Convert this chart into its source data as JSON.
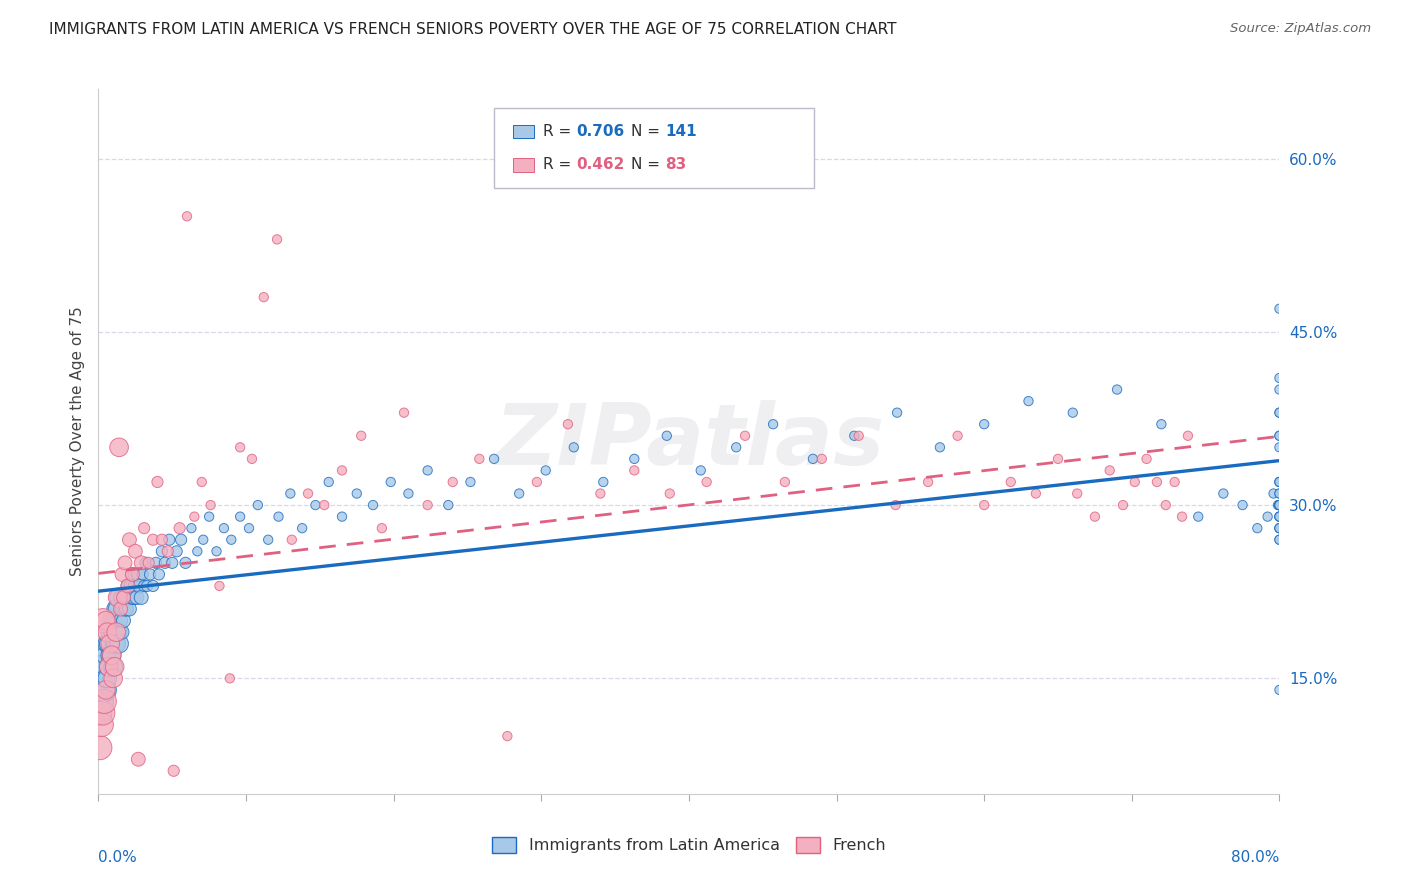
{
  "title": "IMMIGRANTS FROM LATIN AMERICA VS FRENCH SENIORS POVERTY OVER THE AGE OF 75 CORRELATION CHART",
  "source": "Source: ZipAtlas.com",
  "ylabel": "Seniors Poverty Over the Age of 75",
  "ytick_values": [
    0.15,
    0.3,
    0.45,
    0.6
  ],
  "xmin": 0.0,
  "xmax": 0.8,
  "ymin": 0.05,
  "ymax": 0.66,
  "legend_label1": "Immigrants from Latin America",
  "legend_label2": "French",
  "scatter1_color": "#a8c8e8",
  "scatter2_color": "#f4b0c0",
  "line1_color": "#1a6bbf",
  "line2_color": "#e06080",
  "background_color": "#ffffff",
  "grid_color": "#d8d8e8",
  "R1": 0.706,
  "N1": 141,
  "R2": 0.462,
  "N2": 83,
  "scatter1_x": [
    0.001,
    0.002,
    0.002,
    0.003,
    0.003,
    0.004,
    0.004,
    0.005,
    0.005,
    0.006,
    0.006,
    0.007,
    0.007,
    0.008,
    0.008,
    0.009,
    0.009,
    0.01,
    0.01,
    0.011,
    0.011,
    0.012,
    0.012,
    0.013,
    0.013,
    0.014,
    0.014,
    0.015,
    0.015,
    0.016,
    0.016,
    0.017,
    0.018,
    0.018,
    0.019,
    0.02,
    0.02,
    0.021,
    0.022,
    0.023,
    0.023,
    0.024,
    0.025,
    0.026,
    0.027,
    0.028,
    0.029,
    0.03,
    0.031,
    0.032,
    0.033,
    0.035,
    0.037,
    0.039,
    0.041,
    0.043,
    0.045,
    0.048,
    0.05,
    0.053,
    0.056,
    0.059,
    0.063,
    0.067,
    0.071,
    0.075,
    0.08,
    0.085,
    0.09,
    0.096,
    0.102,
    0.108,
    0.115,
    0.122,
    0.13,
    0.138,
    0.147,
    0.156,
    0.165,
    0.175,
    0.186,
    0.198,
    0.21,
    0.223,
    0.237,
    0.252,
    0.268,
    0.285,
    0.303,
    0.322,
    0.342,
    0.363,
    0.385,
    0.408,
    0.432,
    0.457,
    0.484,
    0.512,
    0.541,
    0.57,
    0.6,
    0.63,
    0.66,
    0.69,
    0.72,
    0.745,
    0.762,
    0.775,
    0.785,
    0.792,
    0.796,
    0.799,
    0.8,
    0.8,
    0.8,
    0.8,
    0.8,
    0.8,
    0.8,
    0.8,
    0.8,
    0.8,
    0.8,
    0.8,
    0.8,
    0.8,
    0.8,
    0.8,
    0.8,
    0.8,
    0.8,
    0.8,
    0.8,
    0.8,
    0.8,
    0.8,
    0.8,
    0.8,
    0.8,
    0.8,
    0.8
  ],
  "scatter1_y": [
    0.12,
    0.13,
    0.15,
    0.14,
    0.16,
    0.14,
    0.16,
    0.15,
    0.17,
    0.15,
    0.18,
    0.16,
    0.18,
    0.17,
    0.19,
    0.17,
    0.2,
    0.16,
    0.19,
    0.18,
    0.2,
    0.18,
    0.21,
    0.19,
    0.21,
    0.18,
    0.22,
    0.2,
    0.22,
    0.19,
    0.21,
    0.2,
    0.21,
    0.22,
    0.21,
    0.22,
    0.23,
    0.21,
    0.23,
    0.22,
    0.24,
    0.22,
    0.23,
    0.22,
    0.24,
    0.23,
    0.22,
    0.24,
    0.23,
    0.25,
    0.23,
    0.24,
    0.23,
    0.25,
    0.24,
    0.26,
    0.25,
    0.27,
    0.25,
    0.26,
    0.27,
    0.25,
    0.28,
    0.26,
    0.27,
    0.29,
    0.26,
    0.28,
    0.27,
    0.29,
    0.28,
    0.3,
    0.27,
    0.29,
    0.31,
    0.28,
    0.3,
    0.32,
    0.29,
    0.31,
    0.3,
    0.32,
    0.31,
    0.33,
    0.3,
    0.32,
    0.34,
    0.31,
    0.33,
    0.35,
    0.32,
    0.34,
    0.36,
    0.33,
    0.35,
    0.37,
    0.34,
    0.36,
    0.38,
    0.35,
    0.37,
    0.39,
    0.38,
    0.4,
    0.37,
    0.29,
    0.31,
    0.3,
    0.28,
    0.29,
    0.31,
    0.3,
    0.29,
    0.31,
    0.3,
    0.32,
    0.36,
    0.29,
    0.31,
    0.38,
    0.27,
    0.4,
    0.3,
    0.28,
    0.29,
    0.32,
    0.35,
    0.28,
    0.3,
    0.47,
    0.41,
    0.14,
    0.36,
    0.3,
    0.29,
    0.27,
    0.38,
    0.28,
    0.3,
    0.32,
    0.3
  ],
  "scatter2_x": [
    0.001,
    0.002,
    0.003,
    0.003,
    0.004,
    0.005,
    0.005,
    0.006,
    0.007,
    0.008,
    0.009,
    0.01,
    0.011,
    0.012,
    0.013,
    0.014,
    0.015,
    0.016,
    0.017,
    0.018,
    0.02,
    0.021,
    0.023,
    0.025,
    0.027,
    0.029,
    0.031,
    0.034,
    0.037,
    0.04,
    0.043,
    0.047,
    0.051,
    0.055,
    0.06,
    0.065,
    0.07,
    0.076,
    0.082,
    0.089,
    0.096,
    0.104,
    0.112,
    0.121,
    0.131,
    0.142,
    0.153,
    0.165,
    0.178,
    0.192,
    0.207,
    0.223,
    0.24,
    0.258,
    0.277,
    0.297,
    0.318,
    0.34,
    0.363,
    0.387,
    0.412,
    0.438,
    0.465,
    0.49,
    0.515,
    0.54,
    0.562,
    0.582,
    0.6,
    0.618,
    0.635,
    0.65,
    0.663,
    0.675,
    0.685,
    0.694,
    0.702,
    0.71,
    0.717,
    0.723,
    0.729,
    0.734,
    0.738
  ],
  "scatter2_y": [
    0.09,
    0.11,
    0.12,
    0.2,
    0.13,
    0.14,
    0.2,
    0.19,
    0.16,
    0.18,
    0.17,
    0.15,
    0.16,
    0.19,
    0.22,
    0.35,
    0.21,
    0.24,
    0.22,
    0.25,
    0.23,
    0.27,
    0.24,
    0.26,
    0.08,
    0.25,
    0.28,
    0.25,
    0.27,
    0.32,
    0.27,
    0.26,
    0.07,
    0.28,
    0.55,
    0.29,
    0.32,
    0.3,
    0.23,
    0.15,
    0.35,
    0.34,
    0.48,
    0.53,
    0.27,
    0.31,
    0.3,
    0.33,
    0.36,
    0.28,
    0.38,
    0.3,
    0.32,
    0.34,
    0.1,
    0.32,
    0.37,
    0.31,
    0.33,
    0.31,
    0.32,
    0.36,
    0.32,
    0.34,
    0.36,
    0.3,
    0.32,
    0.36,
    0.3,
    0.32,
    0.31,
    0.34,
    0.31,
    0.29,
    0.33,
    0.3,
    0.32,
    0.34,
    0.32,
    0.3,
    0.32,
    0.29,
    0.36
  ]
}
